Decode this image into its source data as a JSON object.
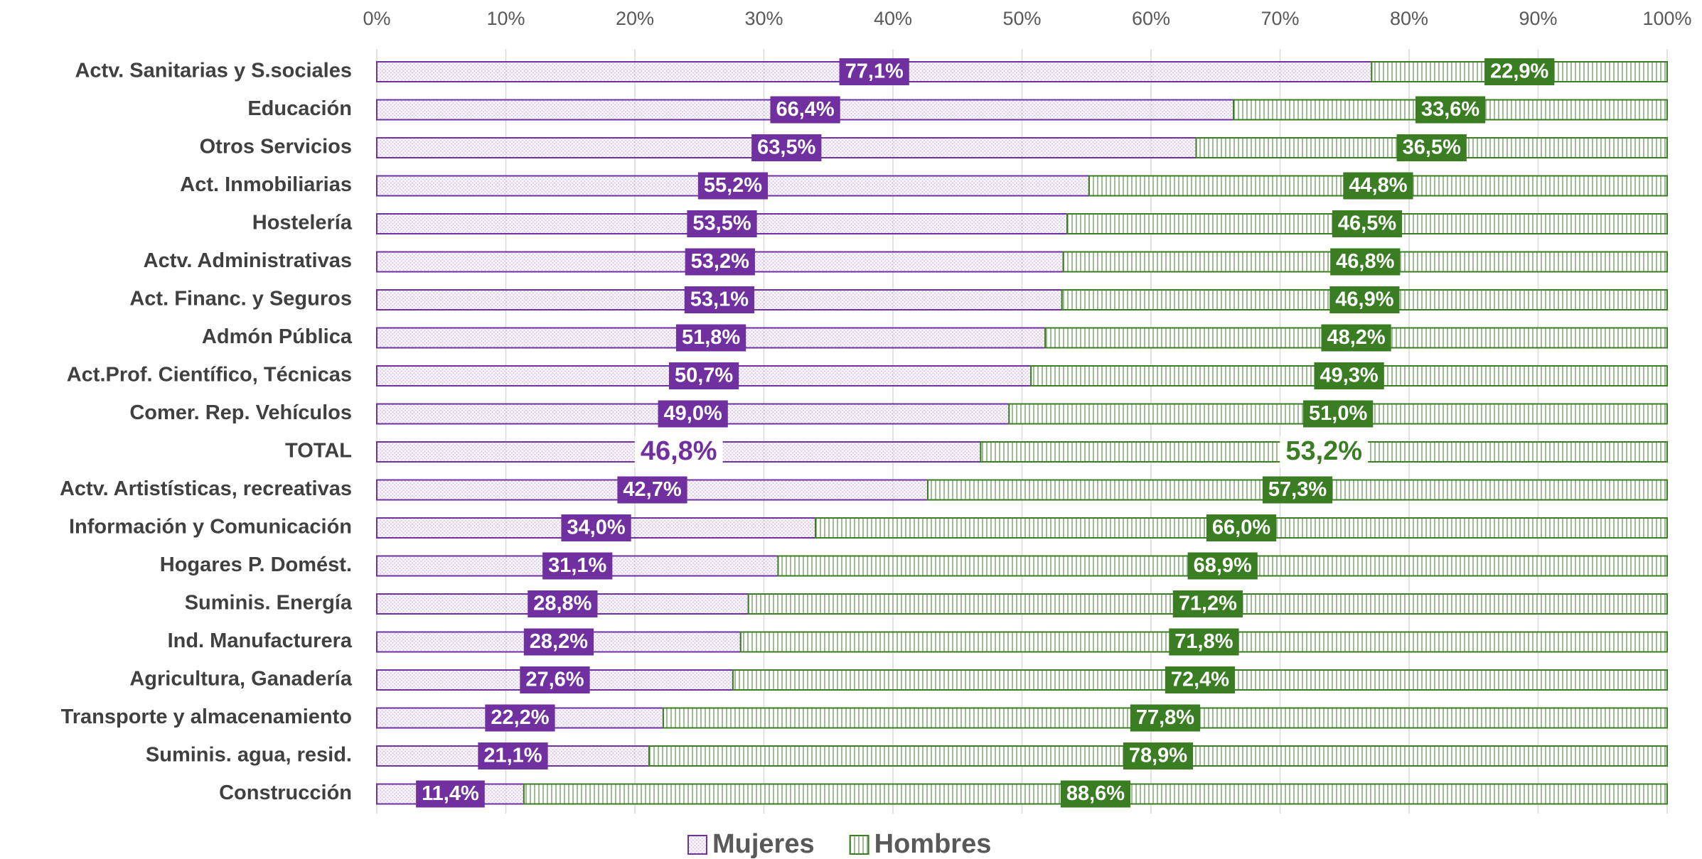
{
  "chart_data": {
    "type": "stacked-bar-horizontal",
    "categories": [
      "Actv. Sanitarias y S.sociales",
      "Educación",
      "Otros Servicios",
      "Act. Inmobiliarias",
      "Hostelería",
      "Actv. Administrativas",
      "Act. Financ. y Seguros",
      "Admón Pública",
      "Act.Prof. Científico, Técnicas",
      "Comer. Rep. Vehículos",
      "TOTAL",
      "Actv. Artistísticas, recreativas",
      "Información y Comunicación",
      "Hogares P. Domést.",
      "Suminis. Energía",
      "Ind. Manufacturera",
      "Agricultura, Ganadería",
      "Transporte y almacenamiento",
      "Suminis. agua, resid.",
      "Construcción"
    ],
    "series": [
      {
        "name": "Mujeres",
        "color": "#7030a0",
        "values": [
          77.1,
          66.4,
          63.5,
          55.2,
          53.5,
          53.2,
          53.1,
          51.8,
          50.7,
          49.0,
          46.8,
          42.7,
          34.0,
          31.1,
          28.8,
          28.2,
          27.6,
          22.2,
          21.1,
          11.4
        ],
        "value_labels": [
          "77,1%",
          "66,4%",
          "63,5%",
          "55,2%",
          "53,5%",
          "53,2%",
          "53,1%",
          "51,8%",
          "50,7%",
          "49,0%",
          "46,8%",
          "42,7%",
          "34,0%",
          "31,1%",
          "28,8%",
          "28,2%",
          "27,6%",
          "22,2%",
          "21,1%",
          "11,4%"
        ]
      },
      {
        "name": "Hombres",
        "color": "#3b7d23",
        "values": [
          22.9,
          33.6,
          36.5,
          44.8,
          46.5,
          46.8,
          46.9,
          48.2,
          49.3,
          51.0,
          53.2,
          57.3,
          66.0,
          68.9,
          71.2,
          71.8,
          72.4,
          77.8,
          78.9,
          88.6
        ],
        "value_labels": [
          "22,9%",
          "33,6%",
          "36,5%",
          "44,8%",
          "46,5%",
          "46,8%",
          "46,9%",
          "48,2%",
          "49,3%",
          "51,0%",
          "53,2%",
          "57,3%",
          "66,0%",
          "68,9%",
          "71,2%",
          "71,8%",
          "72,4%",
          "77,8%",
          "78,9%",
          "88,6%"
        ]
      }
    ],
    "xlim": [
      0,
      100
    ],
    "xticks": [
      {
        "value": 0,
        "label": "0%"
      },
      {
        "value": 10,
        "label": "10%"
      },
      {
        "value": 20,
        "label": "20%"
      },
      {
        "value": 30,
        "label": "30%"
      },
      {
        "value": 40,
        "label": "40%"
      },
      {
        "value": 50,
        "label": "50%"
      },
      {
        "value": 60,
        "label": "60%"
      },
      {
        "value": 70,
        "label": "70%"
      },
      {
        "value": 80,
        "label": "80%"
      },
      {
        "value": 90,
        "label": "90%"
      },
      {
        "value": 100,
        "label": "100%"
      }
    ],
    "grid": true,
    "highlight": [
      10
    ],
    "legend": "bottom"
  }
}
